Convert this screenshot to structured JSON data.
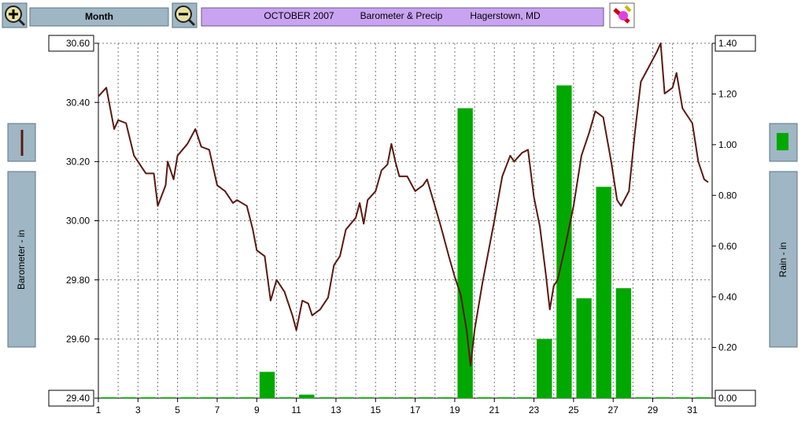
{
  "ui": {
    "month_button": "Month",
    "title": [
      "OCTOBER 2007",
      "Barometer & Precip",
      "Hagerstown, MD"
    ]
  },
  "chart_data": {
    "type": "line-bar",
    "ylabel": "Barometer - in",
    "y2label": "Rain - in",
    "xlim": [
      1,
      32
    ],
    "xticks": [
      1,
      3,
      5,
      7,
      9,
      11,
      13,
      15,
      17,
      19,
      21,
      23,
      25,
      27,
      29,
      31
    ],
    "ylim": [
      29.4,
      30.6
    ],
    "yticks": [
      {
        "value": 29.4,
        "label": "29.40"
      },
      {
        "value": 29.6,
        "label": "29.60"
      },
      {
        "value": 29.8,
        "label": "29.80"
      },
      {
        "value": 30.0,
        "label": "30.00"
      },
      {
        "value": 30.2,
        "label": "30.20"
      },
      {
        "value": 30.4,
        "label": "30.40"
      },
      {
        "value": 30.6,
        "label": "30.60"
      }
    ],
    "y2lim": [
      0,
      1.4
    ],
    "y2ticks": [
      {
        "value": 0,
        "label": "0.00"
      },
      {
        "value": 0.2,
        "label": "0.20"
      },
      {
        "value": 0.4,
        "label": "0.40"
      },
      {
        "value": 0.6,
        "label": "0.60"
      },
      {
        "value": 0.8,
        "label": "0.80"
      },
      {
        "value": 1.0,
        "label": "1.00"
      },
      {
        "value": 1.2,
        "label": "1.20"
      },
      {
        "value": 1.4,
        "label": "1.40"
      }
    ],
    "grid": true,
    "series": [
      {
        "type": "line",
        "color": "#5a1a10",
        "x": [
          1.0,
          1.4,
          1.8,
          2.0,
          2.4,
          2.8,
          3.0,
          3.4,
          3.8,
          4.0,
          4.4,
          4.5,
          4.8,
          5.0,
          5.5,
          5.9,
          6.2,
          6.6,
          7.0,
          7.4,
          7.8,
          8.0,
          8.5,
          8.8,
          9.0,
          9.4,
          9.7,
          10.0,
          10.4,
          10.8,
          11.0,
          11.3,
          11.6,
          11.8,
          12.2,
          12.6,
          12.9,
          13.2,
          13.5,
          14.0,
          14.2,
          14.4,
          14.6,
          15.0,
          15.3,
          15.6,
          15.8,
          16.0,
          16.2,
          16.6,
          17.0,
          17.4,
          17.6,
          18.0,
          18.3,
          18.7,
          19.0,
          19.3,
          19.6,
          19.8,
          20.0,
          20.4,
          21.0,
          21.4,
          21.8,
          22.0,
          22.4,
          22.7,
          23.0,
          23.3,
          23.6,
          23.8,
          24.0,
          24.2,
          24.6,
          25.0,
          25.4,
          25.8,
          26.1,
          26.5,
          26.9,
          27.2,
          27.4,
          27.8,
          28.1,
          28.4,
          28.8,
          29.2,
          29.4,
          29.6,
          30.0,
          30.2,
          30.5,
          30.8,
          31.0,
          31.3,
          31.6,
          31.8
        ],
        "values": [
          30.42,
          30.45,
          30.31,
          30.34,
          30.33,
          30.22,
          30.2,
          30.16,
          30.16,
          30.05,
          30.12,
          30.2,
          30.14,
          30.22,
          30.26,
          30.31,
          30.25,
          30.24,
          30.12,
          30.1,
          30.06,
          30.07,
          30.05,
          29.97,
          29.9,
          29.88,
          29.73,
          29.8,
          29.76,
          29.68,
          29.63,
          29.73,
          29.72,
          29.68,
          29.7,
          29.74,
          29.85,
          29.88,
          29.97,
          30.01,
          30.06,
          29.99,
          30.07,
          30.1,
          30.17,
          30.19,
          30.26,
          30.2,
          30.15,
          30.15,
          30.1,
          30.12,
          30.14,
          30.05,
          29.98,
          29.88,
          29.81,
          29.75,
          29.63,
          29.51,
          29.63,
          29.79,
          30.0,
          30.15,
          30.22,
          30.2,
          30.23,
          30.24,
          30.08,
          29.98,
          29.82,
          29.7,
          29.78,
          29.8,
          29.92,
          30.05,
          30.22,
          30.3,
          30.37,
          30.35,
          30.2,
          30.07,
          30.05,
          30.1,
          30.3,
          30.47,
          30.52,
          30.57,
          30.6,
          30.43,
          30.45,
          30.5,
          30.38,
          30.35,
          30.33,
          30.2,
          30.14,
          30.13
        ]
      },
      {
        "type": "bar",
        "axis": "y2",
        "color": "#00a800",
        "x": [
          1,
          2,
          3,
          4,
          5,
          6,
          7,
          8,
          9,
          10,
          11,
          12,
          13,
          14,
          15,
          16,
          17,
          18,
          19,
          20,
          21,
          22,
          23,
          24,
          25,
          26,
          27,
          28,
          29,
          30,
          31
        ],
        "values": [
          0,
          0,
          0,
          0,
          0,
          0,
          0,
          0,
          0.1,
          0,
          0.01,
          0,
          0,
          0,
          0,
          0,
          0,
          0,
          1.14,
          0,
          0,
          0,
          0.23,
          1.23,
          0.39,
          0.83,
          0.43,
          0,
          0,
          0,
          0
        ]
      }
    ]
  }
}
